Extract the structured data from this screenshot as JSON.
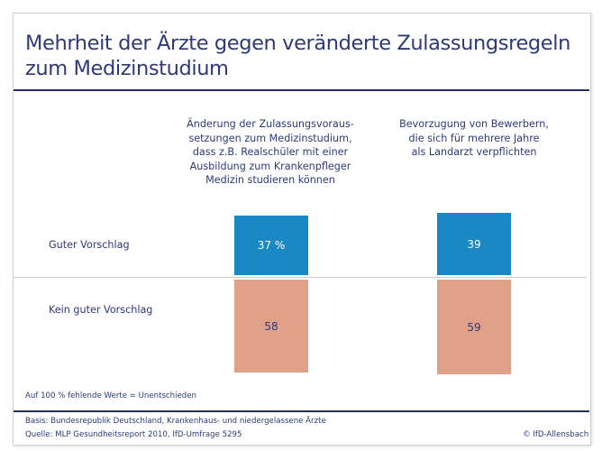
{
  "title_line1": "Mehrheit der Ärzte gegen veränderte Zulassungsregeln",
  "title_line2": "zum Medizinstudium",
  "chart_data": {
    "type": "bar",
    "categories": [
      "Änderung der Zulassungsvoraus-setzungen zum Medizinstudium, dass z.B. Realschüler mit einer Ausbildung zum Krankenpfleger Medizin studieren können",
      "Bevorzugung von Bewerbern, die sich für mehrere Jahre als Landarzt verpflichten"
    ],
    "category_lines": [
      [
        "Änderung der Zulassungsvoraus-",
        "setzungen zum Medizinstudium,",
        "dass z.B. Realschüler mit einer",
        "Ausbildung zum Krankenpfleger",
        "Medizin studieren können"
      ],
      [
        "Bevorzugung von Bewerbern,",
        "die sich für mehrere Jahre",
        "als Landarzt verpflichten"
      ]
    ],
    "series": [
      {
        "name": "Guter Vorschlag",
        "values": [
          37,
          39
        ],
        "labels": [
          "37 %",
          "39"
        ],
        "color": "#1a88c4"
      },
      {
        "name": "Kein guter Vorschlag",
        "values": [
          58,
          59
        ],
        "labels": [
          "58",
          "59"
        ],
        "color": "#e1a189"
      }
    ],
    "unit": "%"
  },
  "note": "Auf 100 % fehlende Werte = Unentschieden",
  "basis": "Basis: Bundesrepublik Deutschland, Krankenhaus- und niedergelassene Ärzte",
  "source": "Quelle: MLP Gesundheitsreport 2010, IfD-Umfrage 5295",
  "copyright": "© IfD-Allensbach"
}
